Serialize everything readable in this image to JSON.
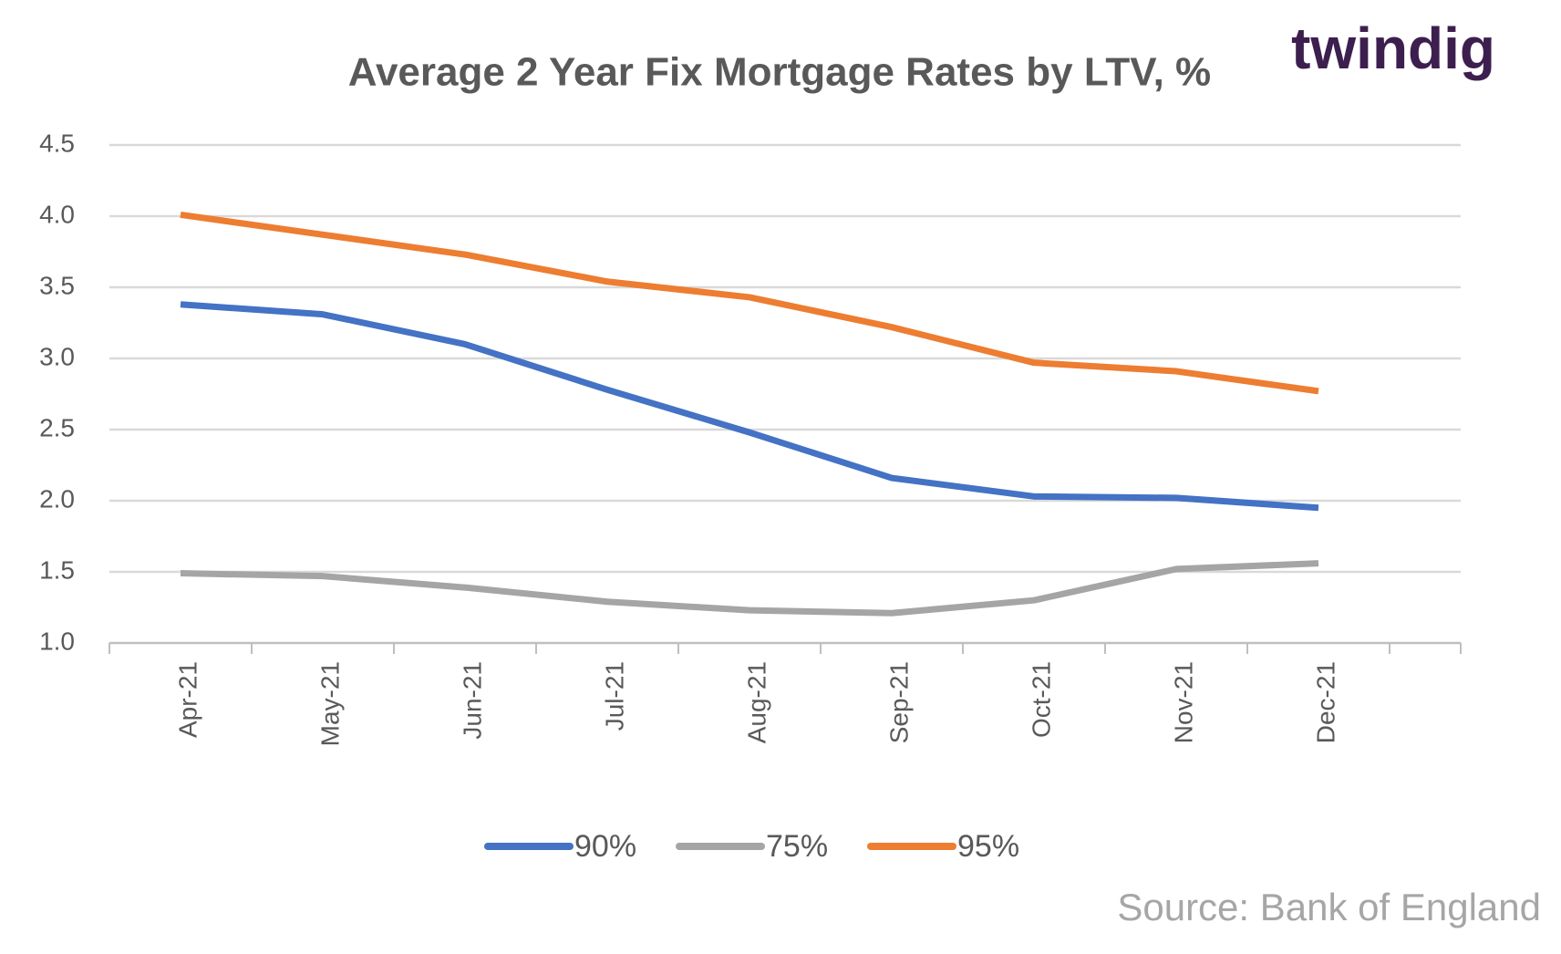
{
  "chart_data": {
    "type": "line",
    "title": "Average 2 Year Fix Mortgage Rates by LTV, %",
    "logo": "twindig",
    "source": "Source: Bank of England",
    "categories": [
      "Apr-21",
      "May-21",
      "Jun-21",
      "Jul-21",
      "Aug-21",
      "Sep-21",
      "Oct-21",
      "Nov-21",
      "Dec-21"
    ],
    "series": [
      {
        "name": "90%",
        "color": "#4472c4",
        "values": [
          3.38,
          3.31,
          3.1,
          2.78,
          2.48,
          2.16,
          2.03,
          2.02,
          1.95
        ]
      },
      {
        "name": "75%",
        "color": "#a5a5a5",
        "values": [
          1.49,
          1.47,
          1.39,
          1.29,
          1.23,
          1.21,
          1.3,
          1.52,
          1.56
        ]
      },
      {
        "name": "95%",
        "color": "#ed7d31",
        "values": [
          4.01,
          3.87,
          3.73,
          3.54,
          3.43,
          3.22,
          2.97,
          2.91,
          2.77
        ]
      }
    ],
    "ylim": [
      1,
      4.5
    ],
    "yticks": [
      {
        "value": 1,
        "label": "1.0"
      },
      {
        "value": 1.5,
        "label": "1.5"
      },
      {
        "value": 2,
        "label": "2.0"
      },
      {
        "value": 2.5,
        "label": "2.5"
      },
      {
        "value": 3,
        "label": "3.0"
      },
      {
        "value": 3.5,
        "label": "3.5"
      },
      {
        "value": 4,
        "label": "4.0"
      },
      {
        "value": 4.5,
        "label": "4.5"
      }
    ],
    "grid": true
  }
}
